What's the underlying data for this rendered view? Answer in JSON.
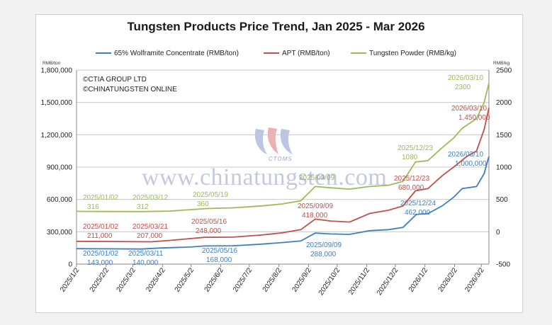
{
  "chart_data": {
    "type": "line",
    "title": "Tungsten Products Price Trend, Jan 2025 - Mar 2026",
    "left_axis_unit": "RMB/ton",
    "right_axis_unit": "RMB/kg",
    "copyright": [
      "©CTIA GROUP LTD",
      "©CHINATUNGSTEN ONLINE"
    ],
    "watermark": "www.chinatungsten.com",
    "watermark_logo_text": "CTOMS",
    "x_ticks": [
      "2025/1/2",
      "2025/2/2",
      "2025/3/2",
      "2025/4/2",
      "2025/5/2",
      "2025/6/2",
      "2025/7/2",
      "2025/8/2",
      "2025/9/2",
      "2025/10/2",
      "2025/11/2",
      "2025/12/2",
      "2026/1/2",
      "2026/2/2",
      "2026/3/2"
    ],
    "xlim": [
      "2025-01-02",
      "2026-03-10"
    ],
    "ylim_left": [
      0,
      1800000
    ],
    "ylim_right": [
      -500,
      2500
    ],
    "y_ticks_left": [
      "0",
      "300,000",
      "600,000",
      "900,000",
      "1,200,000",
      "1,500,000",
      "1,800,000"
    ],
    "y_ticks_right": [
      "-500",
      "0",
      "500",
      "1000",
      "1500",
      "2000",
      "2500"
    ],
    "grid": "horizontal",
    "legend_position": "top",
    "series": [
      {
        "name": "65% Wolframite Concentrate (RMB/ton)",
        "axis": "left",
        "color": "#3d7fc1",
        "points": [
          [
            "2025-01-02",
            143000
          ],
          [
            "2025-02-01",
            142000
          ],
          [
            "2025-03-11",
            140000
          ],
          [
            "2025-04-01",
            150000
          ],
          [
            "2025-05-01",
            158000
          ],
          [
            "2025-05-16",
            168000
          ],
          [
            "2025-06-15",
            170000
          ],
          [
            "2025-07-15",
            185000
          ],
          [
            "2025-08-05",
            200000
          ],
          [
            "2025-08-25",
            215000
          ],
          [
            "2025-09-09",
            288000
          ],
          [
            "2025-09-25",
            280000
          ],
          [
            "2025-10-15",
            276000
          ],
          [
            "2025-11-05",
            310000
          ],
          [
            "2025-11-25",
            320000
          ],
          [
            "2025-12-10",
            340000
          ],
          [
            "2025-12-24",
            462000
          ],
          [
            "2026-01-05",
            468000
          ],
          [
            "2026-01-20",
            540000
          ],
          [
            "2026-02-01",
            620000
          ],
          [
            "2026-02-10",
            700000
          ],
          [
            "2026-02-25",
            720000
          ],
          [
            "2026-03-05",
            840000
          ],
          [
            "2026-03-10",
            1000000
          ]
        ],
        "labels": [
          {
            "date": "2025/01/02",
            "value": "143,000"
          },
          {
            "date": "2025/03/11",
            "value": "140,000"
          },
          {
            "date": "2025/05/16",
            "value": "168,000"
          },
          {
            "date": "2025/09/09",
            "value": "288,000"
          },
          {
            "date": "2025/12/24",
            "value": "462,000"
          },
          {
            "date": "2026/03/10",
            "value": "1,000,000"
          }
        ]
      },
      {
        "name": "APT (RMB/ton)",
        "axis": "left",
        "color": "#c0504d",
        "points": [
          [
            "2025-01-02",
            211000
          ],
          [
            "2025-02-01",
            210000
          ],
          [
            "2025-03-21",
            207000
          ],
          [
            "2025-04-10",
            220000
          ],
          [
            "2025-05-16",
            248000
          ],
          [
            "2025-06-15",
            250000
          ],
          [
            "2025-07-15",
            270000
          ],
          [
            "2025-08-05",
            290000
          ],
          [
            "2025-08-25",
            320000
          ],
          [
            "2025-09-09",
            418000
          ],
          [
            "2025-09-25",
            400000
          ],
          [
            "2025-10-15",
            390000
          ],
          [
            "2025-11-05",
            470000
          ],
          [
            "2025-11-25",
            500000
          ],
          [
            "2025-12-10",
            540000
          ],
          [
            "2025-12-23",
            680000
          ],
          [
            "2026-01-05",
            700000
          ],
          [
            "2026-01-20",
            820000
          ],
          [
            "2026-02-01",
            900000
          ],
          [
            "2026-02-15",
            1000000
          ],
          [
            "2026-02-25",
            1050000
          ],
          [
            "2026-03-05",
            1250000
          ],
          [
            "2026-03-10",
            1450000
          ]
        ],
        "labels": [
          {
            "date": "2025/01/02",
            "value": "211,000"
          },
          {
            "date": "2025/03/21",
            "value": "207,000"
          },
          {
            "date": "2025/05/16",
            "value": "248,000"
          },
          {
            "date": "2025/09/09",
            "value": "418,000"
          },
          {
            "date": "2025/12/23",
            "value": "680,000"
          },
          {
            "date": "2026/03/10",
            "value": "1,450,000"
          }
        ]
      },
      {
        "name": "Tungsten Powder (RMB/kg)",
        "axis": "right",
        "color": "#9bbb59",
        "points": [
          [
            "2025-01-02",
            316
          ],
          [
            "2025-02-01",
            314
          ],
          [
            "2025-03-12",
            312
          ],
          [
            "2025-04-10",
            320
          ],
          [
            "2025-05-19",
            360
          ],
          [
            "2025-06-15",
            370
          ],
          [
            "2025-07-15",
            400
          ],
          [
            "2025-08-05",
            430
          ],
          [
            "2025-08-25",
            480
          ],
          [
            "2025-09-09",
            700
          ],
          [
            "2025-09-25",
            680
          ],
          [
            "2025-10-15",
            660
          ],
          [
            "2025-11-05",
            700
          ],
          [
            "2025-11-25",
            720
          ],
          [
            "2025-12-10",
            780
          ],
          [
            "2025-12-23",
            1080
          ],
          [
            "2026-01-05",
            1100
          ],
          [
            "2026-01-20",
            1300
          ],
          [
            "2026-02-01",
            1450
          ],
          [
            "2026-02-10",
            1600
          ],
          [
            "2026-02-25",
            1750
          ],
          [
            "2026-03-05",
            2000
          ],
          [
            "2026-03-10",
            2300
          ]
        ],
        "labels": [
          {
            "date": "2025/01/02",
            "value": "316"
          },
          {
            "date": "2025/03/12",
            "value": "312"
          },
          {
            "date": "2025/05/19",
            "value": "360"
          },
          {
            "date": "2025/09/09",
            "value": ""
          },
          {
            "date": "2025/12/23",
            "value": "1080"
          },
          {
            "date": "2026/03/10",
            "value": "2300"
          }
        ]
      }
    ]
  }
}
